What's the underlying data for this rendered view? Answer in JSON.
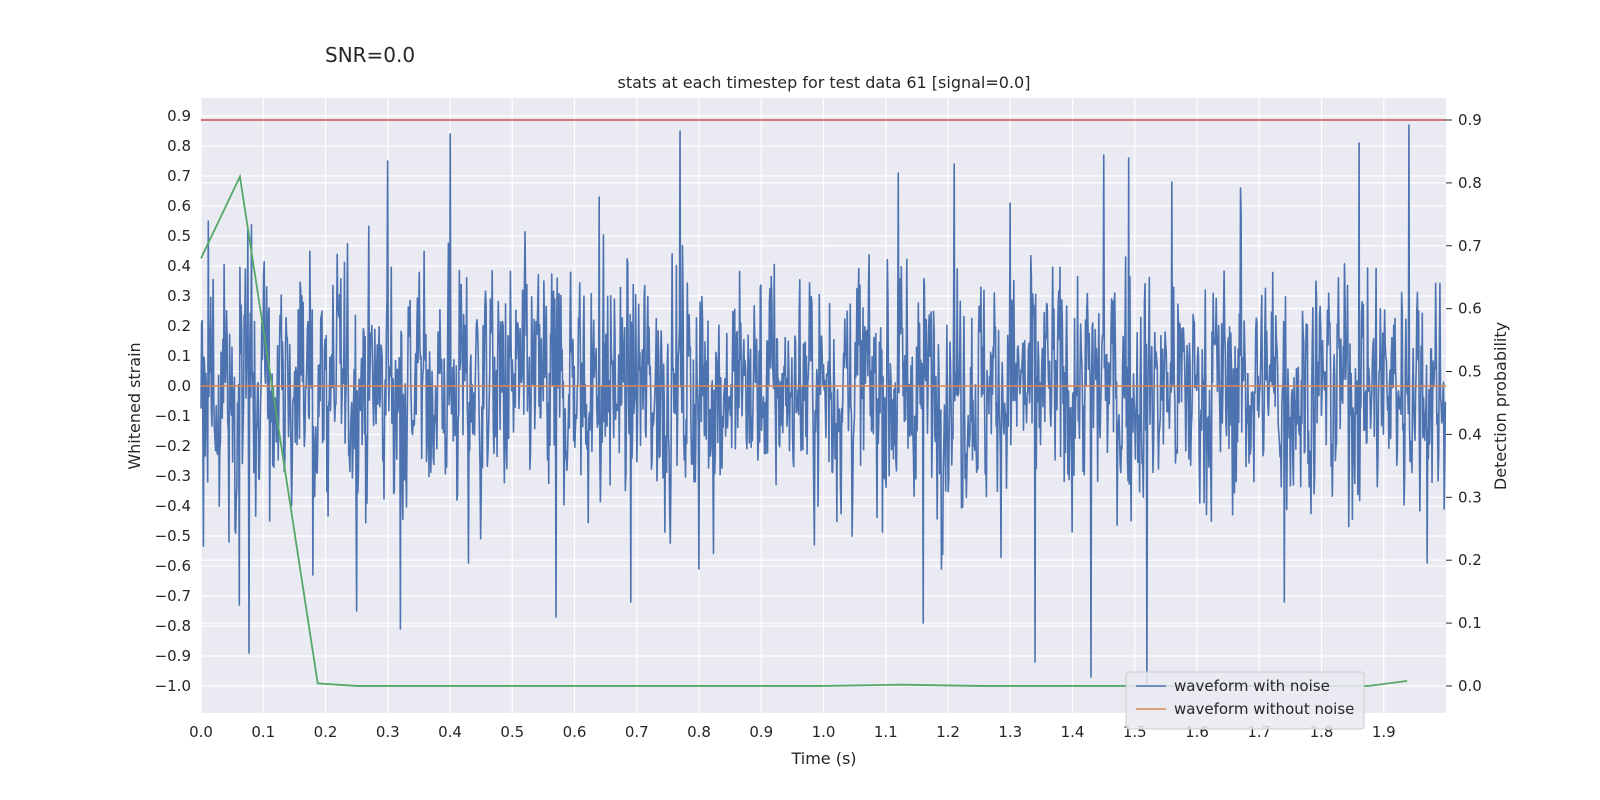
{
  "chart_data": {
    "type": "line",
    "suptitle": "SNR=0.0",
    "title": "stats at each timestep for test data 61 [signal=0.0]",
    "xlabel": "Time (s)",
    "ylabel_left": "Whitened strain",
    "ylabel_right": "Detection probability",
    "xlim": [
      0.0,
      2.0
    ],
    "ylim_left": [
      -1.09,
      0.96
    ],
    "ylim_right": [
      -0.043,
      0.935
    ],
    "xticks": [
      "0.0",
      "0.1",
      "0.2",
      "0.3",
      "0.4",
      "0.5",
      "0.6",
      "0.7",
      "0.8",
      "0.9",
      "1.0",
      "1.1",
      "1.2",
      "1.3",
      "1.4",
      "1.5",
      "1.6",
      "1.7",
      "1.8",
      "1.9"
    ],
    "yticks_left": [
      "0.9",
      "0.8",
      "0.7",
      "0.6",
      "0.5",
      "0.4",
      "0.3",
      "0.2",
      "0.1",
      "0.0",
      "−0.1",
      "−0.2",
      "−0.3",
      "−0.4",
      "−0.5",
      "−0.6",
      "−0.7",
      "−0.8",
      "−0.9",
      "−1.0"
    ],
    "yticks_right": [
      "0.9",
      "0.8",
      "0.7",
      "0.6",
      "0.5",
      "0.4",
      "0.3",
      "0.2",
      "0.1",
      "0.0"
    ],
    "grid": true,
    "legend_position": "bottom-right",
    "threshold_right": 0.9,
    "series": [
      {
        "name": "waveform with noise",
        "color": "#4c72b0",
        "axis": "left",
        "sample_count": 2048,
        "amplitude_std": 0.28,
        "seed": 61,
        "peaks": [
          [
            0.012,
            0.55
          ],
          [
            0.045,
            -0.52
          ],
          [
            0.062,
            -0.73
          ],
          [
            0.075,
            0.52
          ],
          [
            0.077,
            -0.89
          ],
          [
            0.11,
            -0.45
          ],
          [
            0.18,
            -0.63
          ],
          [
            0.25,
            -0.75
          ],
          [
            0.3,
            0.75
          ],
          [
            0.32,
            -0.81
          ],
          [
            0.4,
            0.84
          ],
          [
            0.43,
            -0.59
          ],
          [
            0.57,
            -0.77
          ],
          [
            0.64,
            0.63
          ],
          [
            0.69,
            -0.72
          ],
          [
            0.77,
            0.85
          ],
          [
            0.8,
            -0.61
          ],
          [
            1.12,
            0.71
          ],
          [
            1.16,
            -0.79
          ],
          [
            1.21,
            0.74
          ],
          [
            1.3,
            0.61
          ],
          [
            1.34,
            -0.92
          ],
          [
            1.43,
            -0.97
          ],
          [
            1.45,
            0.77
          ],
          [
            1.49,
            0.76
          ],
          [
            1.52,
            -0.99
          ],
          [
            1.56,
            0.68
          ],
          [
            1.67,
            0.66
          ],
          [
            1.74,
            -0.72
          ],
          [
            1.86,
            0.81
          ],
          [
            1.94,
            0.87
          ],
          [
            1.97,
            -0.59
          ]
        ]
      },
      {
        "name": "waveform without noise",
        "color": "#dd8452",
        "axis": "left",
        "x": [
          0.0,
          2.0
        ],
        "y": [
          0.0,
          0.0
        ]
      },
      {
        "name": "detection probability",
        "color": "#55a868",
        "axis": "right",
        "x": [
          0.0,
          0.0625,
          0.1875,
          0.25,
          0.375,
          0.5,
          0.625,
          0.75,
          0.875,
          1.0,
          1.125,
          1.25,
          1.375,
          1.5,
          1.625,
          1.75,
          1.875,
          1.9375
        ],
        "y": [
          0.68,
          0.81,
          0.004,
          0.0,
          0.0,
          0.0,
          0.0,
          0.0,
          0.0,
          0.0,
          0.002,
          0.0,
          0.0,
          0.0,
          0.0,
          0.0,
          0.0,
          0.008
        ]
      }
    ],
    "colors": {
      "threshold": "#c44e52",
      "plot_bg": "#eaeaf2",
      "grid": "#ffffff"
    }
  }
}
